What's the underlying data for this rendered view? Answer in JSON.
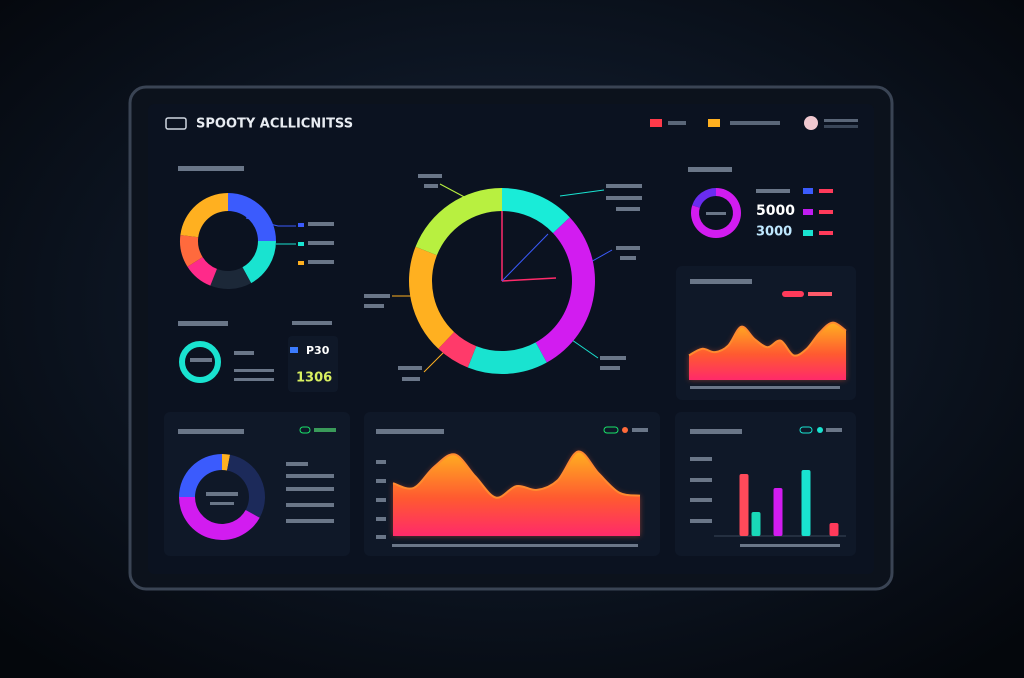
{
  "header": {
    "title": "SPOOTY ACLLICNITSS"
  },
  "stats": [
    "5000",
    "3000",
    "P30",
    "1306"
  ],
  "widgets": [
    {
      "type": "donut",
      "values": [
        25,
        17,
        14,
        10,
        11,
        23
      ],
      "colors": [
        "#3b5bfd",
        "#19e3d0",
        "#1c2838",
        "#ff2a8a",
        "#ff6a3d",
        "#ffb020"
      ]
    },
    {
      "type": "donut",
      "values": [
        100
      ],
      "colors": [
        "#19e3d0"
      ]
    },
    {
      "type": "donut",
      "values": [
        13,
        29,
        14,
        6,
        19,
        19
      ],
      "colors": [
        "#19ecd8",
        "#d21cf0",
        "#19e3d0",
        "#ff3a6a",
        "#ffb020",
        "#b8f040"
      ]
    },
    {
      "type": "donut",
      "values": [
        80,
        20
      ],
      "colors": [
        "#d21cf0",
        "#6a2cf0"
      ]
    },
    {
      "type": "donut",
      "values": [
        3,
        30,
        42,
        25
      ],
      "colors": [
        "#ffb020",
        "#1c2a5a",
        "#d21cf0",
        "#3b5bfd"
      ]
    },
    {
      "type": "area",
      "values": [
        30,
        38,
        34,
        42,
        65,
        50,
        40,
        48,
        30,
        38,
        58,
        70,
        60
      ],
      "ylim": [
        0,
        100
      ]
    },
    {
      "type": "area",
      "values": [
        55,
        50,
        72,
        85,
        62,
        40,
        52,
        48,
        58,
        88,
        65,
        45,
        42
      ],
      "ylim": [
        0,
        100
      ]
    },
    {
      "type": "bar",
      "values": [
        62,
        24,
        48,
        66,
        13
      ],
      "colors": [
        "#ff4a5a",
        "#19d8b8",
        "#d21cf0",
        "#19e3d0",
        "#ff3a5a"
      ],
      "ylim": [
        0,
        80
      ]
    }
  ]
}
